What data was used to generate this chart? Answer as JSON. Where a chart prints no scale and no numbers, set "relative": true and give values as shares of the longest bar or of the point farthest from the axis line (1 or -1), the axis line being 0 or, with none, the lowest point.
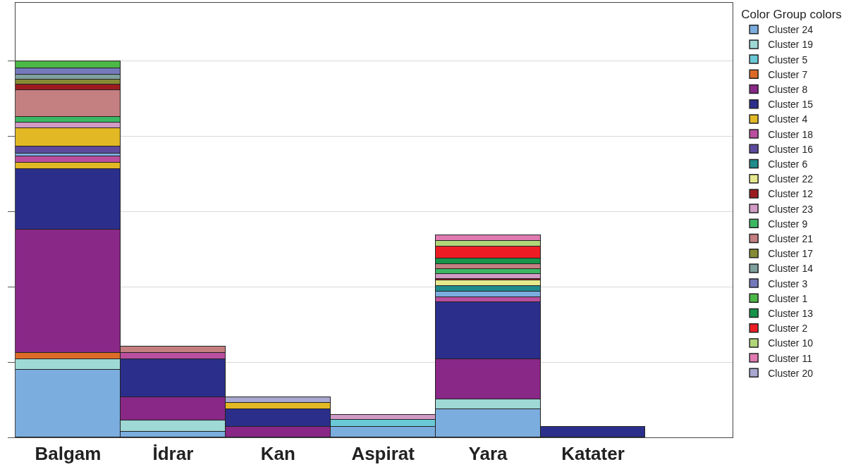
{
  "chart_data": {
    "type": "bar",
    "stacked": true,
    "relative": true,
    "legend_title": "Color Group colors",
    "legend": "right",
    "grid": "y",
    "tick_labels": "x",
    "categories": [
      "Balgam",
      "İdrar",
      "Kan",
      "Aspirat",
      "Yara",
      "Katater"
    ],
    "series": [
      {
        "name": "Cluster 24",
        "color": "#7badde",
        "values": [
          0.179,
          0.015,
          null,
          0.028,
          0.074,
          null
        ]
      },
      {
        "name": "Cluster 19",
        "color": "#9ed9d6",
        "values": [
          0.028,
          0.03,
          null,
          null,
          0.028,
          null
        ]
      },
      {
        "name": "Cluster 5",
        "color": "#6ac9d6",
        "values": [
          null,
          null,
          null,
          0.019,
          null,
          null
        ]
      },
      {
        "name": "Cluster 7",
        "color": "#dd6b27",
        "values": [
          0.017,
          null,
          null,
          null,
          null,
          null
        ]
      },
      {
        "name": "Cluster 8",
        "color": "#892886",
        "values": [
          0.328,
          0.061,
          0.028,
          null,
          0.106,
          null
        ]
      },
      {
        "name": "Cluster 15",
        "color": "#2b2f8b",
        "values": [
          0.162,
          0.101,
          0.047,
          null,
          0.151,
          0.028
        ]
      },
      {
        "name": "Cluster 4",
        "color": "#e2b824",
        "values": [
          0.017,
          null,
          0.017,
          null,
          null,
          null
        ]
      },
      {
        "name": "Cluster 18",
        "color": "#b94f9e",
        "values": [
          0.015,
          0.017,
          null,
          null,
          0.013,
          null
        ]
      },
      {
        "color": "#7badde",
        "values": [
          0.009,
          null,
          null,
          null,
          0.015,
          null
        ]
      },
      {
        "name": "Cluster 16",
        "color": "#5e4a9c",
        "values": [
          0.019,
          null,
          null,
          null,
          null,
          null
        ]
      },
      {
        "color": "#e2b824",
        "values": [
          0.047,
          null,
          null,
          null,
          null,
          null
        ]
      },
      {
        "name": "Cluster 6",
        "color": "#1f8b8b",
        "values": [
          null,
          null,
          null,
          null,
          0.015,
          null
        ]
      },
      {
        "name": "Cluster 22",
        "color": "#e6e88e",
        "values": [
          null,
          null,
          null,
          null,
          0.015,
          null
        ]
      },
      {
        "name": "Cluster 12",
        "color": "#9b1b1f",
        "values": [
          null,
          null,
          null,
          null,
          0.004,
          null
        ]
      },
      {
        "name": "Cluster 23",
        "color": "#d19bc6",
        "values": [
          0.015,
          null,
          null,
          0.013,
          0.013,
          null
        ]
      },
      {
        "name": "Cluster 9",
        "color": "#3cb863",
        "values": [
          0.015,
          null,
          null,
          null,
          0.013,
          null
        ]
      },
      {
        "name": "Cluster 21",
        "color": "#c47f80",
        "values": [
          0.072,
          0.017,
          null,
          null,
          0.013,
          null
        ]
      },
      {
        "color": "#9b1b1f",
        "values": [
          0.015,
          null,
          null,
          null,
          null,
          null
        ]
      },
      {
        "name": "Cluster 17",
        "color": "#868a34",
        "values": [
          0.013,
          null,
          null,
          null,
          null,
          null
        ]
      },
      {
        "name": "Cluster 14",
        "color": "#7fa19d",
        "values": [
          0.013,
          null,
          null,
          null,
          null,
          null
        ]
      },
      {
        "name": "Cluster 3",
        "color": "#7479bb",
        "values": [
          0.017,
          null,
          null,
          null,
          null,
          null
        ]
      },
      {
        "name": "Cluster 1",
        "color": "#4cb848",
        "values": [
          0.019,
          null,
          null,
          null,
          null,
          null
        ]
      },
      {
        "name": "Cluster 13",
        "color": "#17944a",
        "values": [
          null,
          null,
          null,
          null,
          0.015,
          null
        ]
      },
      {
        "name": "Cluster 2",
        "color": "#ed1c24",
        "values": [
          null,
          null,
          null,
          null,
          0.032,
          null
        ]
      },
      {
        "name": "Cluster 10",
        "color": "#b1d67a",
        "values": [
          null,
          null,
          null,
          null,
          0.015,
          null
        ]
      },
      {
        "name": "Cluster 11",
        "color": "#e07bb1",
        "values": [
          null,
          null,
          null,
          null,
          0.015,
          null
        ]
      },
      {
        "name": "Cluster 20",
        "color": "#a9a8d1",
        "values": [
          null,
          null,
          0.015,
          null,
          null,
          null
        ]
      }
    ]
  }
}
